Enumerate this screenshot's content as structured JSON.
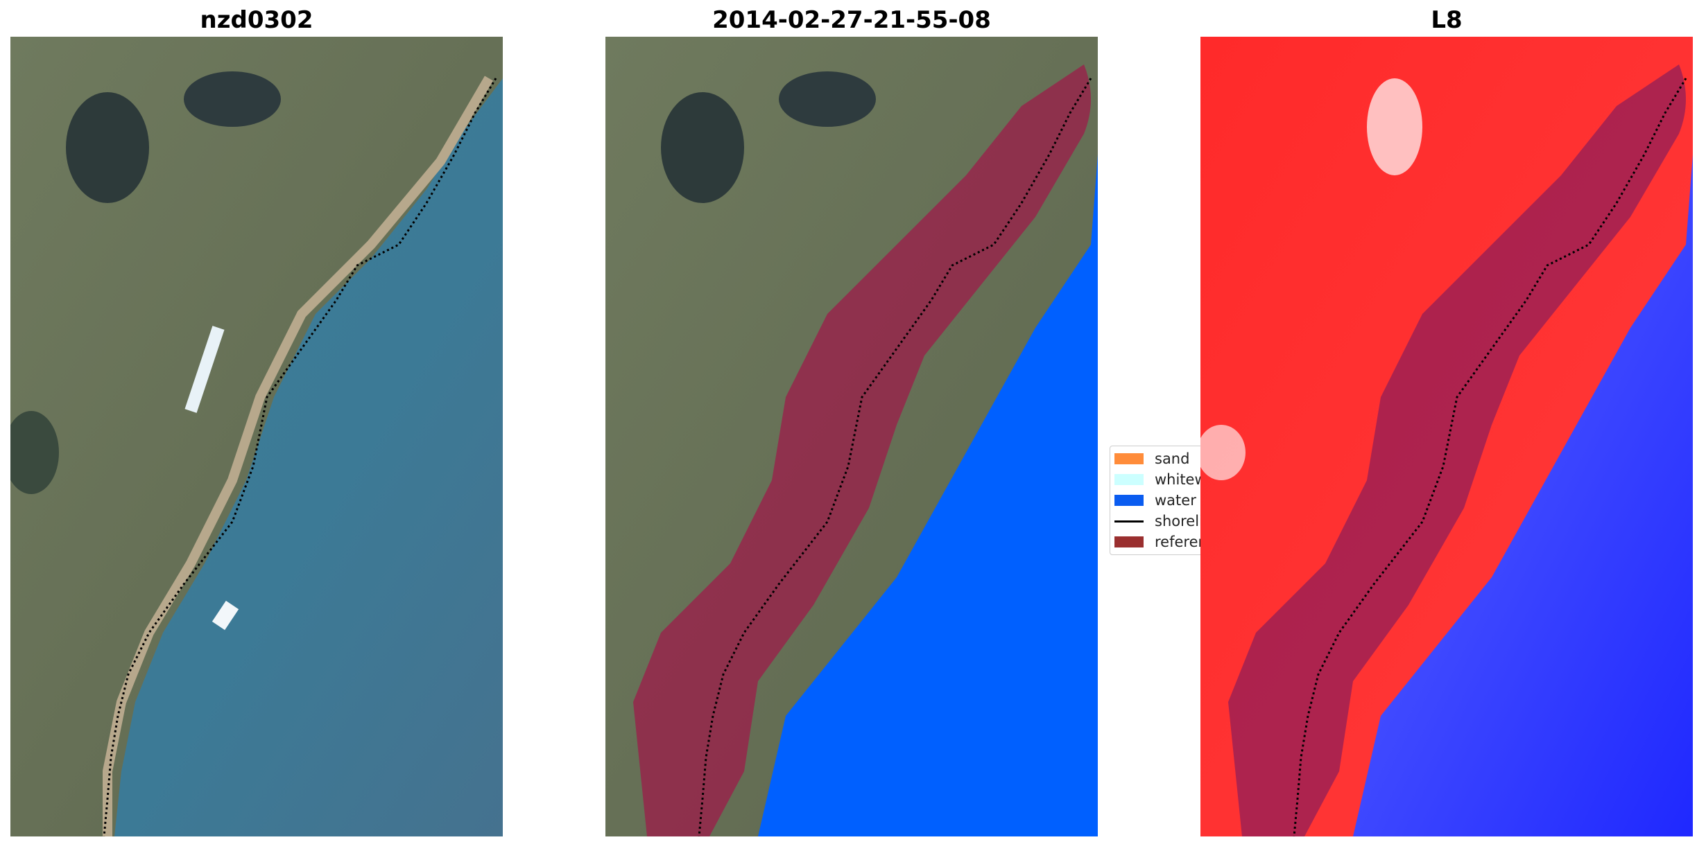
{
  "panels": [
    {
      "title": "nzd0302"
    },
    {
      "title": "2014-02-27-21-55-08"
    },
    {
      "title": "L8"
    }
  ],
  "legend": {
    "items": [
      {
        "label": "sand",
        "color": "#ff8c3a",
        "type": "patch"
      },
      {
        "label": "whitewater",
        "color": "#ccffff",
        "type": "patch"
      },
      {
        "label": "water",
        "color": "#0a5cf0",
        "type": "patch"
      },
      {
        "label": "shoreline",
        "color": "#000000",
        "type": "line"
      },
      {
        "label": "reference",
        "color": "#9a2f2f",
        "type": "patch"
      }
    ]
  },
  "colors": {
    "water_class": "#0060ff",
    "buffer": "#9c1c4a",
    "shoreline": "#000000",
    "land_red": "#ff2a2a",
    "sea_blue": "#1f28ff"
  }
}
